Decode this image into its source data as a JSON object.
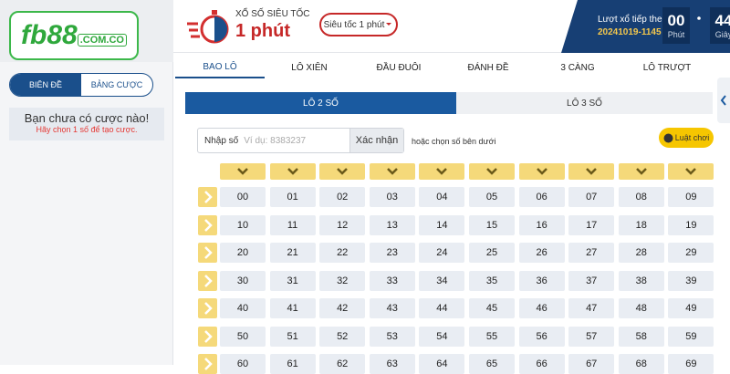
{
  "logo": {
    "brand": "fb88",
    "domain": ".COM.CO"
  },
  "header": {
    "game_label": "XỔ SỐ SIÊU TỐC",
    "game_title": "1 phút",
    "selector": "Siêu tốc 1 phút",
    "next_draw_label": "Lượt xổ tiếp theo",
    "draw_id": "20241019-1145",
    "countdown": [
      {
        "value": "00",
        "unit": "Phút"
      },
      {
        "value": "44",
        "unit": "Giây"
      }
    ]
  },
  "sidebar": {
    "tabs": [
      "BIÊN ĐỀ",
      "BẢNG CƯỢC"
    ],
    "empty_title": "Bạn chưa có cược nào!",
    "empty_hint": "Hãy chọn 1 số để tạo cược."
  },
  "tabs": [
    "BAO LÔ",
    "LÔ XIÊN",
    "ĐẦU ĐUÔI",
    "ĐÁNH ĐỀ",
    "3 CÀNG",
    "LÔ TRƯỢT"
  ],
  "subtabs": [
    "LÔ 2 SỐ",
    "LÔ 3 SỐ"
  ],
  "input": {
    "label": "Nhập số",
    "placeholder": "Ví dụ: 8383237",
    "button": "Xác nhận",
    "hint": "hoặc chọn số bên dưới",
    "rules": "Luật chơi"
  },
  "grid": {
    "rows": [
      [
        "00",
        "01",
        "02",
        "03",
        "04",
        "05",
        "06",
        "07",
        "08",
        "09"
      ],
      [
        "10",
        "11",
        "12",
        "13",
        "14",
        "15",
        "16",
        "17",
        "18",
        "19"
      ],
      [
        "20",
        "21",
        "22",
        "23",
        "24",
        "25",
        "26",
        "27",
        "28",
        "29"
      ],
      [
        "30",
        "31",
        "32",
        "33",
        "34",
        "35",
        "36",
        "37",
        "38",
        "39"
      ],
      [
        "40",
        "41",
        "42",
        "43",
        "44",
        "45",
        "46",
        "47",
        "48",
        "49"
      ],
      [
        "50",
        "51",
        "52",
        "53",
        "54",
        "55",
        "56",
        "57",
        "58",
        "59"
      ],
      [
        "60",
        "61",
        "62",
        "63",
        "64",
        "65",
        "66",
        "67",
        "68",
        "69"
      ]
    ]
  }
}
